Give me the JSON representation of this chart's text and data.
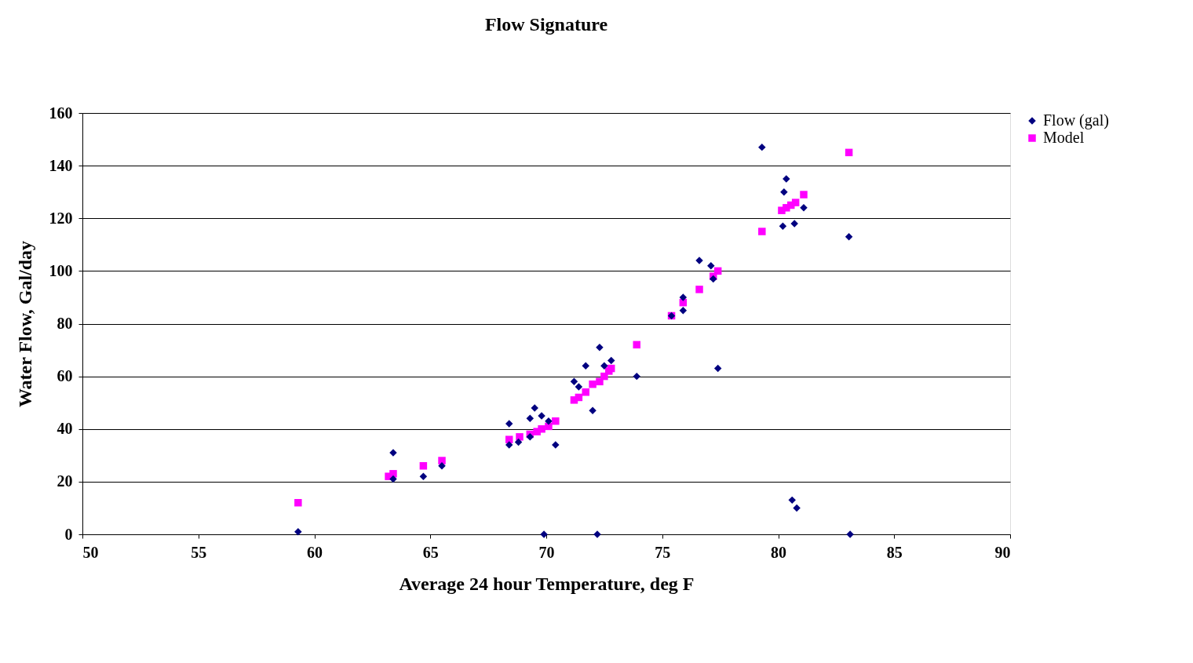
{
  "chart_data": {
    "type": "scatter",
    "title": "Flow Signature",
    "xlabel": "Average 24 hour Temperature, deg F",
    "ylabel": "Water Flow, Gal/day",
    "xlim": [
      50,
      90
    ],
    "xticks": [
      50,
      55,
      60,
      65,
      70,
      75,
      80,
      85,
      90
    ],
    "ylim": [
      0,
      160
    ],
    "yticks": [
      0,
      20,
      40,
      60,
      80,
      100,
      120,
      140,
      160
    ],
    "grid": "y",
    "legend": "right",
    "series": [
      {
        "name": "Flow (gal)",
        "color": "#000080",
        "marker": "diamond",
        "x": [
          59.3,
          63.4,
          63.4,
          64.7,
          65.5,
          68.4,
          68.4,
          68.8,
          69.3,
          69.5,
          69.3,
          69.8,
          70.1,
          70.4,
          69.9,
          71.2,
          71.4,
          71.7,
          72.0,
          72.3,
          72.5,
          72.8,
          72.2,
          73.9,
          75.4,
          75.9,
          75.9,
          76.6,
          77.1,
          77.2,
          77.4,
          79.3,
          80.35,
          80.25,
          80.2,
          80.7,
          81.1,
          83.05,
          80.6,
          80.8,
          83.1
        ],
        "values": [
          1,
          31,
          21,
          22,
          26,
          42,
          34,
          35,
          44,
          48,
          37,
          45,
          43,
          34,
          0,
          58,
          56,
          64,
          47,
          71,
          64,
          66,
          0,
          60,
          83,
          90,
          85,
          104,
          102,
          97,
          63,
          147,
          135,
          130,
          117,
          118,
          124,
          113,
          13,
          10,
          0
        ]
      },
      {
        "name": "Model",
        "color": "#ff00ff",
        "marker": "square",
        "x": [
          59.3,
          63.2,
          63.4,
          64.7,
          65.5,
          68.4,
          68.85,
          69.3,
          69.6,
          69.8,
          70.1,
          70.4,
          71.2,
          71.4,
          71.7,
          72.0,
          72.3,
          72.5,
          72.7,
          72.8,
          73.9,
          75.4,
          75.9,
          76.6,
          77.2,
          77.4,
          79.3,
          80.15,
          80.35,
          80.55,
          80.75,
          81.1,
          83.05
        ],
        "values": [
          12,
          22,
          23,
          26,
          28,
          36,
          37,
          38,
          39,
          40,
          41,
          43,
          51,
          52,
          54,
          57,
          58,
          60,
          62,
          63,
          72,
          83,
          88,
          93,
          98,
          100,
          115,
          123,
          124,
          125,
          126,
          129,
          145
        ]
      }
    ]
  }
}
